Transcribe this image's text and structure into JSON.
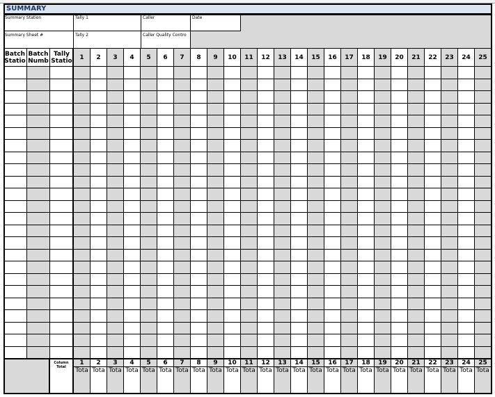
{
  "title": "SUMMARY",
  "header": {
    "summary_station": "Summary Station",
    "tally1": "Tally 1",
    "caller": "Caller",
    "date": "Date",
    "summary_sheet": "Summary Sheet #",
    "tally2": "Tally 2",
    "caller_qc": "Caller Quality Contro"
  },
  "columns": {
    "batch_station": "Batch Statio",
    "batch_number": "Batch Numb",
    "tally_station": "Tally Statio",
    "numbers": [
      "1",
      "2",
      "3",
      "4",
      "5",
      "6",
      "7",
      "8",
      "9",
      "10",
      "11",
      "12",
      "13",
      "14",
      "15",
      "16",
      "17",
      "18",
      "19",
      "20",
      "21",
      "22",
      "23",
      "24",
      "25"
    ]
  },
  "footer": {
    "column_total": "Column Total",
    "total_label": "Tota"
  },
  "colors": {
    "shade": "#d9d9d9",
    "title_bg": "#dbe5f1"
  }
}
